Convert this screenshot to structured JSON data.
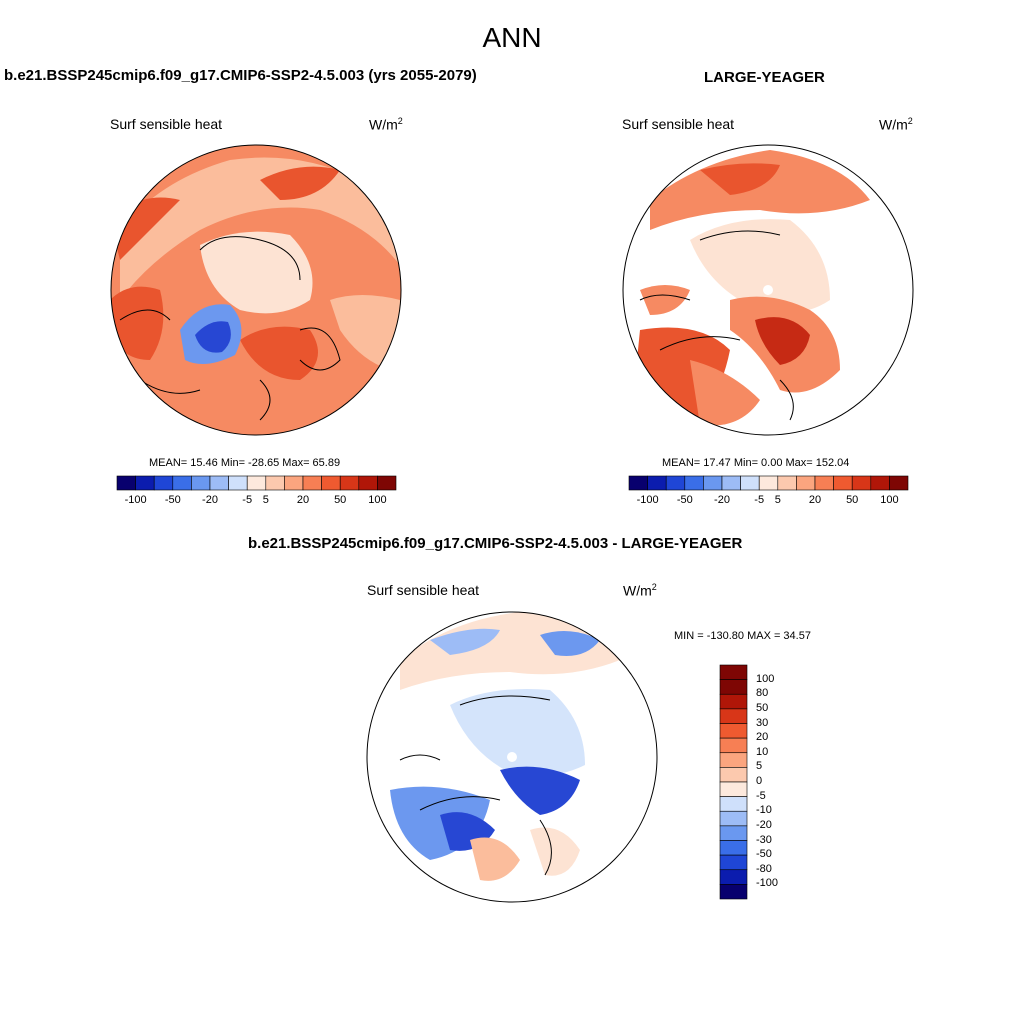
{
  "page_title": "ANN",
  "panels": [
    {
      "case_title": "b.e21.BSSP245cmip6.f09_g17.CMIP6-SSP2-4.5.003 (yrs 2055-2079)",
      "variable": "Surf sensible heat",
      "units_base": "W/m",
      "units_exp": "2",
      "stats_text": "MEAN=  15.46  Min= -28.65  Max=  65.89"
    },
    {
      "case_title": "LARGE-YEAGER",
      "variable": "Surf sensible heat",
      "units_base": "W/m",
      "units_exp": "2",
      "stats_text": "MEAN=  17.47  Min=    0.00  Max= 152.04"
    },
    {
      "case_title": "b.e21.BSSP245cmip6.f09_g17.CMIP6-SSP2-4.5.003 - LARGE-YEAGER",
      "variable": "Surf sensible heat",
      "units_base": "W/m",
      "units_exp": "2",
      "stats_text": "MIN = -130.80 MAX =  34.57"
    }
  ],
  "colorbar_horizontal": {
    "tick_labels": [
      "-100",
      "-50",
      "-20",
      "-5",
      "5",
      "20",
      "50",
      "100"
    ],
    "colors": [
      "#08006e",
      "#0b1cae",
      "#1f46d6",
      "#3a6ee8",
      "#6a98f0",
      "#9dbcf6",
      "#cfe0fb",
      "#fde9dd",
      "#fcc9ae",
      "#fba57f",
      "#f77f54",
      "#ef5a30",
      "#d83618",
      "#b01608",
      "#7e0604"
    ]
  },
  "colorbar_vertical": {
    "tick_labels": [
      "100",
      "80",
      "50",
      "30",
      "20",
      "10",
      "5",
      "0",
      "-5",
      "-10",
      "-20",
      "-30",
      "-50",
      "-80",
      "-100"
    ],
    "colors": [
      "#7e0604",
      "#b01608",
      "#d83618",
      "#ef5a30",
      "#f77f54",
      "#fba57f",
      "#fcc9ae",
      "#fde9dd",
      "#cfe0fb",
      "#9dbcf6",
      "#6a98f0",
      "#3a6ee8",
      "#1f46d6",
      "#0b1cae",
      "#08006e"
    ]
  },
  "map_colors": {
    "pale_orange": "#fde3d3",
    "light_orange": "#fbbd9c",
    "mid_orange": "#f68a62",
    "deep_orange": "#e9552e",
    "dark_red": "#c62a14",
    "light_blue": "#d4e4fb",
    "mid_blue": "#6c98ef",
    "deep_blue": "#2747d3",
    "land": "#ffffff"
  }
}
